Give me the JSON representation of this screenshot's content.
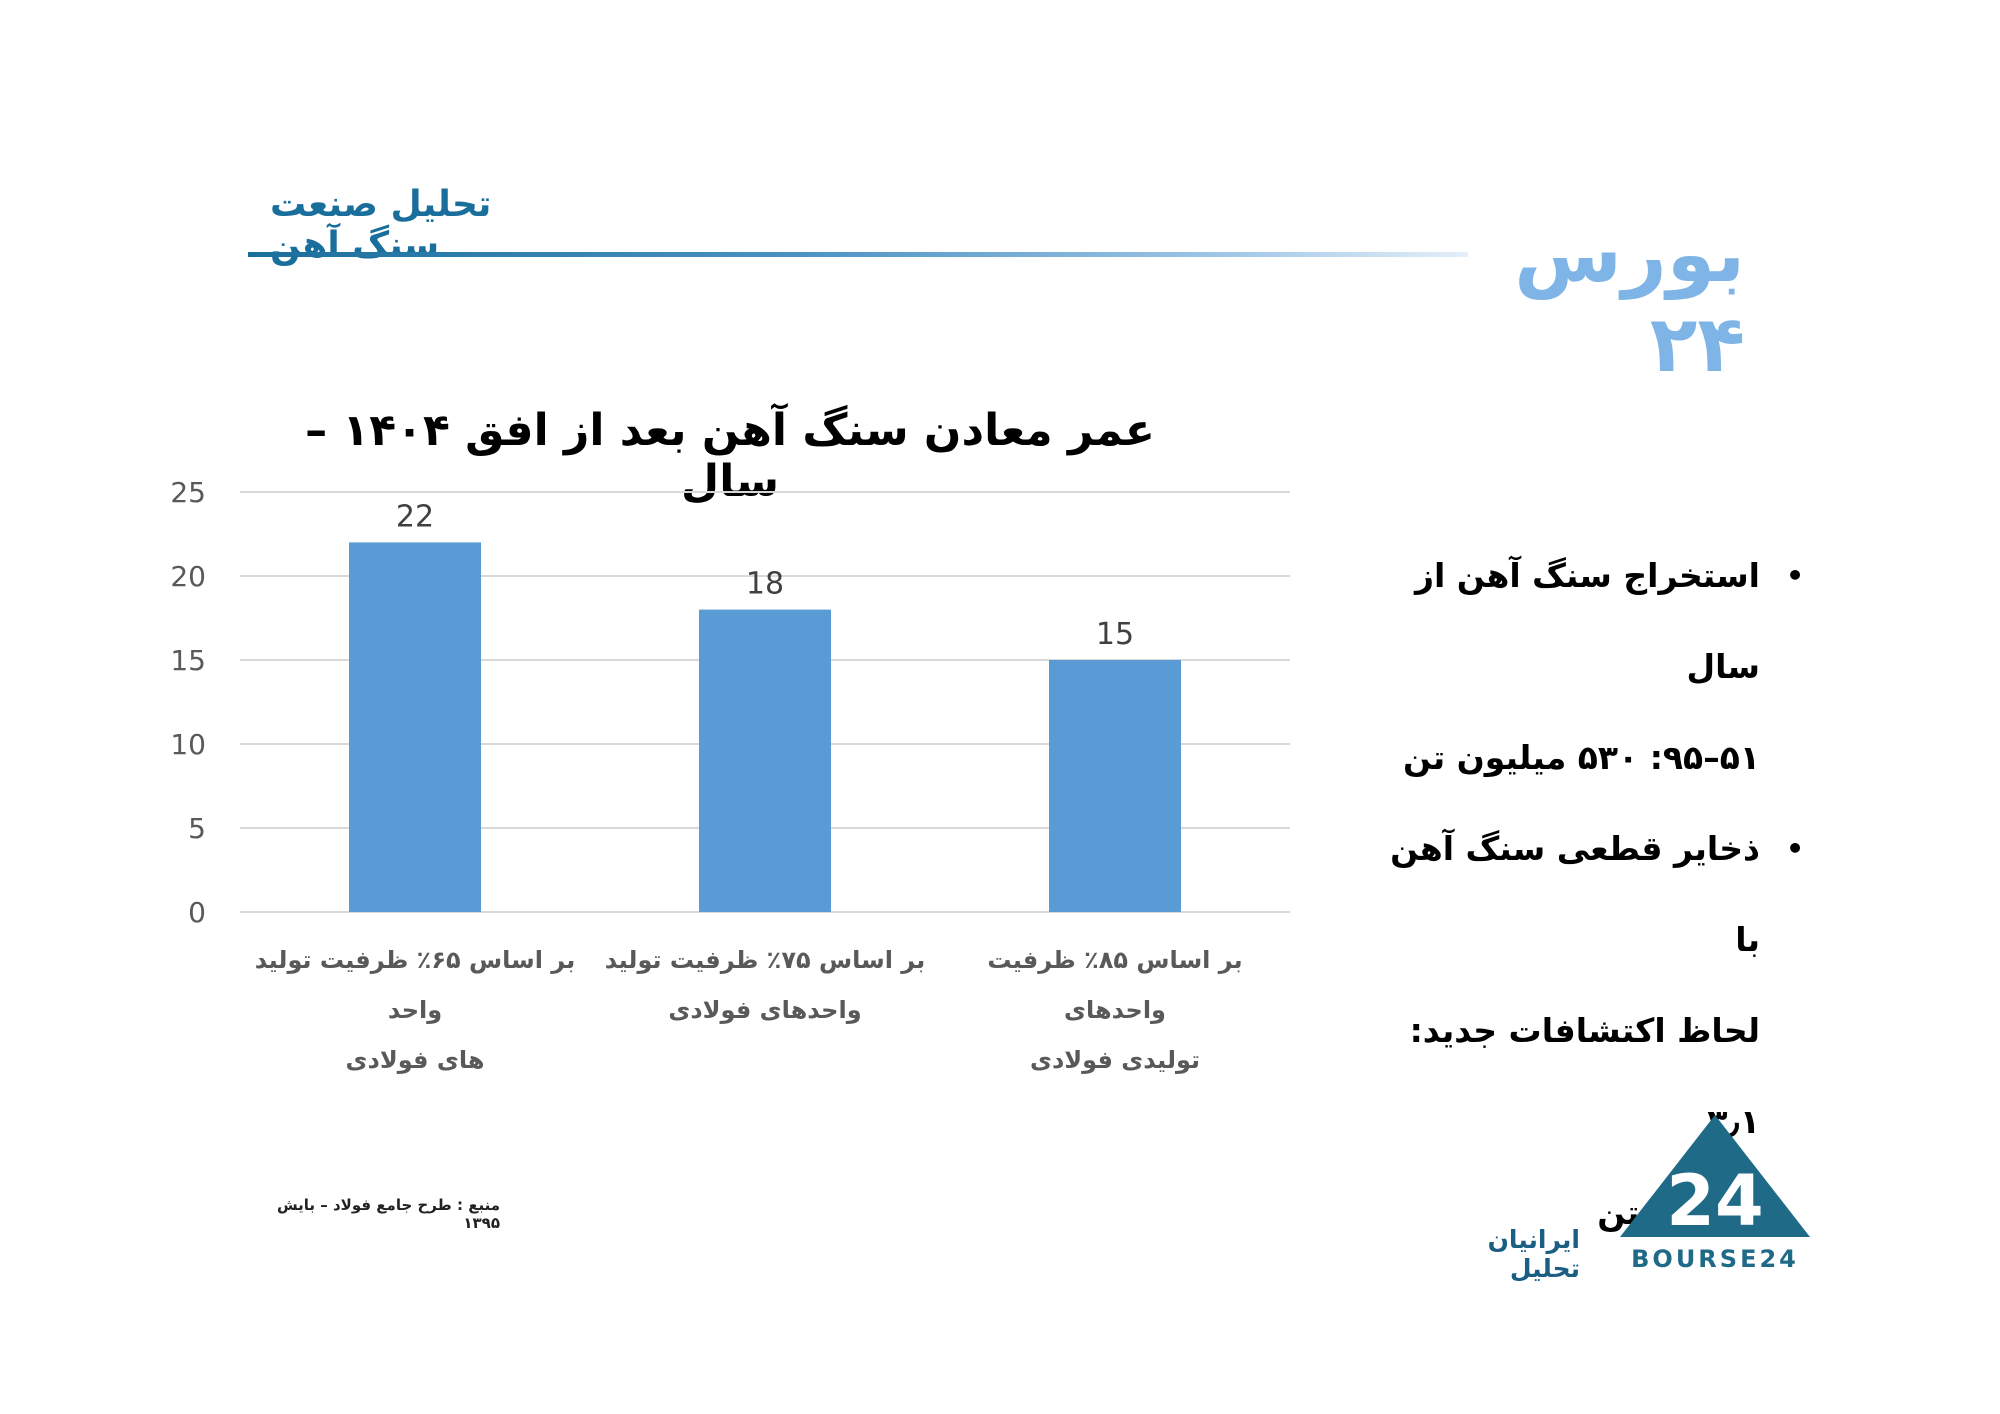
{
  "header": {
    "title": "تحلیل صنعت سنگ آهن",
    "brand": "بورس ۲۴",
    "accent_color": "#1a6e9c"
  },
  "chart_data": {
    "type": "bar",
    "title": "عمر معادن سنگ آهن بعد از افق ۱۴۰۴ – سال",
    "categories": [
      [
        "بر اساس ۶۵٪ ظرفیت تولید واحد",
        "های فولادی"
      ],
      [
        "بر اساس ۷۵٪ ظرفیت تولید",
        "واحدهای فولادی"
      ],
      [
        "بر اساس ۸۵٪ ظرفیت واحدهای",
        "تولیدی فولادی"
      ]
    ],
    "values": [
      22,
      18,
      15
    ],
    "data_labels": [
      "22",
      "18",
      "15"
    ],
    "y_ticks": [
      "0",
      "5",
      "10",
      "15",
      "20",
      "25"
    ],
    "ylim": [
      0,
      25
    ],
    "grid": true,
    "bar_color": "#5b9bd5"
  },
  "bullets": [
    [
      "استخراج سنگ آهن از سال",
      "۵۱–۹۵: ۵۳۰ میلیون تن"
    ],
    [
      "ذخایر قطعی سنگ آهن با",
      "لحاظ اکتشافات جدید: ۳٫۱",
      "میلیارد تن"
    ]
  ],
  "bullet_symbol": "•",
  "footer": {
    "source": "منبع : طرح جامع فولاد – بایش ۱۳۹۵",
    "company": "ایرانیان تحلیل",
    "logo_text": "BOURSE24",
    "logo_number": "24",
    "logo_color": "#1f6b87"
  }
}
